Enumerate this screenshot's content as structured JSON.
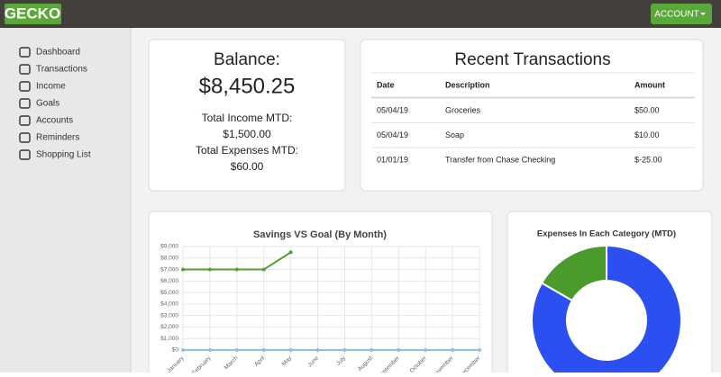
{
  "header": {
    "logo": "GECKO",
    "account_button": "ACCOUNT"
  },
  "sidebar": {
    "items": [
      "Dashboard",
      "Transactions",
      "Income",
      "Goals",
      "Accounts",
      "Reminders",
      "Shopping List"
    ]
  },
  "balance": {
    "title": "Balance:",
    "amount": "$8,450.25",
    "income_label": "Total Income MTD:",
    "income": "$1,500.00",
    "expenses_label": "Total Expenses MTD:",
    "expenses": "$60.00"
  },
  "transactions": {
    "title": "Recent Transactions",
    "columns": [
      "Date",
      "Description",
      "Amount"
    ],
    "rows": [
      [
        "05/04/19",
        "Groceries",
        "$50.00"
      ],
      [
        "05/04/19",
        "Soap",
        "$10.00"
      ],
      [
        "01/01/19",
        "Transfer from Chase Checking",
        "$-25.00"
      ]
    ]
  },
  "chart_data": [
    {
      "type": "line",
      "title": "Savings VS Goal (By Month)",
      "categories": [
        "January",
        "February",
        "March",
        "April",
        "May",
        "June",
        "July",
        "August",
        "September",
        "October",
        "November",
        "December"
      ],
      "series": [
        {
          "color": "#5a9e2f",
          "values": [
            7000,
            7000,
            7000,
            7000,
            8500,
            null,
            null,
            null,
            null,
            null,
            null,
            null
          ]
        },
        {
          "color": "#8ec0e0",
          "values": [
            0,
            0,
            0,
            0,
            0,
            0,
            0,
            0,
            0,
            0,
            0,
            0
          ]
        }
      ],
      "ylim": [
        0,
        9000
      ],
      "yticks": [
        {
          "value": 0,
          "label": "$0"
        },
        {
          "value": 1000,
          "label": "$1,000"
        },
        {
          "value": 2000,
          "label": "$2,000"
        },
        {
          "value": 3000,
          "label": "$3,000"
        },
        {
          "value": 4000,
          "label": "$4,000"
        },
        {
          "value": 5000,
          "label": "$5,000"
        },
        {
          "value": 6000,
          "label": "$6,000"
        },
        {
          "value": 7000,
          "label": "$7,000"
        },
        {
          "value": 8000,
          "label": "$8,000"
        },
        {
          "value": 9000,
          "label": "$9,000"
        }
      ],
      "grid": true
    },
    {
      "type": "doughnut",
      "title": "Expenses In Each Category (MTD)",
      "values": [
        50,
        10
      ],
      "colors": [
        "#2b4ff0",
        "#4a9a2c"
      ]
    }
  ]
}
